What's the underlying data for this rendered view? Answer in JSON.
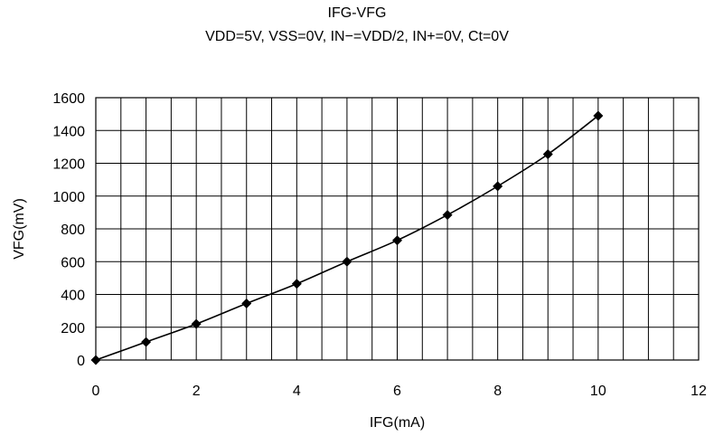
{
  "chart_data": {
    "type": "line",
    "title": "IFG-VFG",
    "subtitle": "VDD=5V, VSS=0V, IN−=VDD/2, IN+=0V, Ct=0V",
    "xlabel": "IFG(mA)",
    "ylabel": "VFG(mV)",
    "xlim": [
      0,
      12
    ],
    "ylim": [
      0,
      1600
    ],
    "x_ticks": [
      0,
      2,
      4,
      6,
      8,
      10,
      12
    ],
    "y_ticks": [
      0,
      200,
      400,
      600,
      800,
      1000,
      1200,
      1400,
      1600
    ],
    "x_minor_step": 0.5,
    "grid": true,
    "legend": "none",
    "series": [
      {
        "marker": "diamond",
        "color": "#000000",
        "x": [
          0,
          1,
          2,
          3,
          4,
          5,
          6,
          7,
          8,
          9,
          10
        ],
        "y": [
          0,
          110,
          220,
          345,
          465,
          600,
          730,
          885,
          1060,
          1255,
          1490
        ]
      }
    ]
  }
}
